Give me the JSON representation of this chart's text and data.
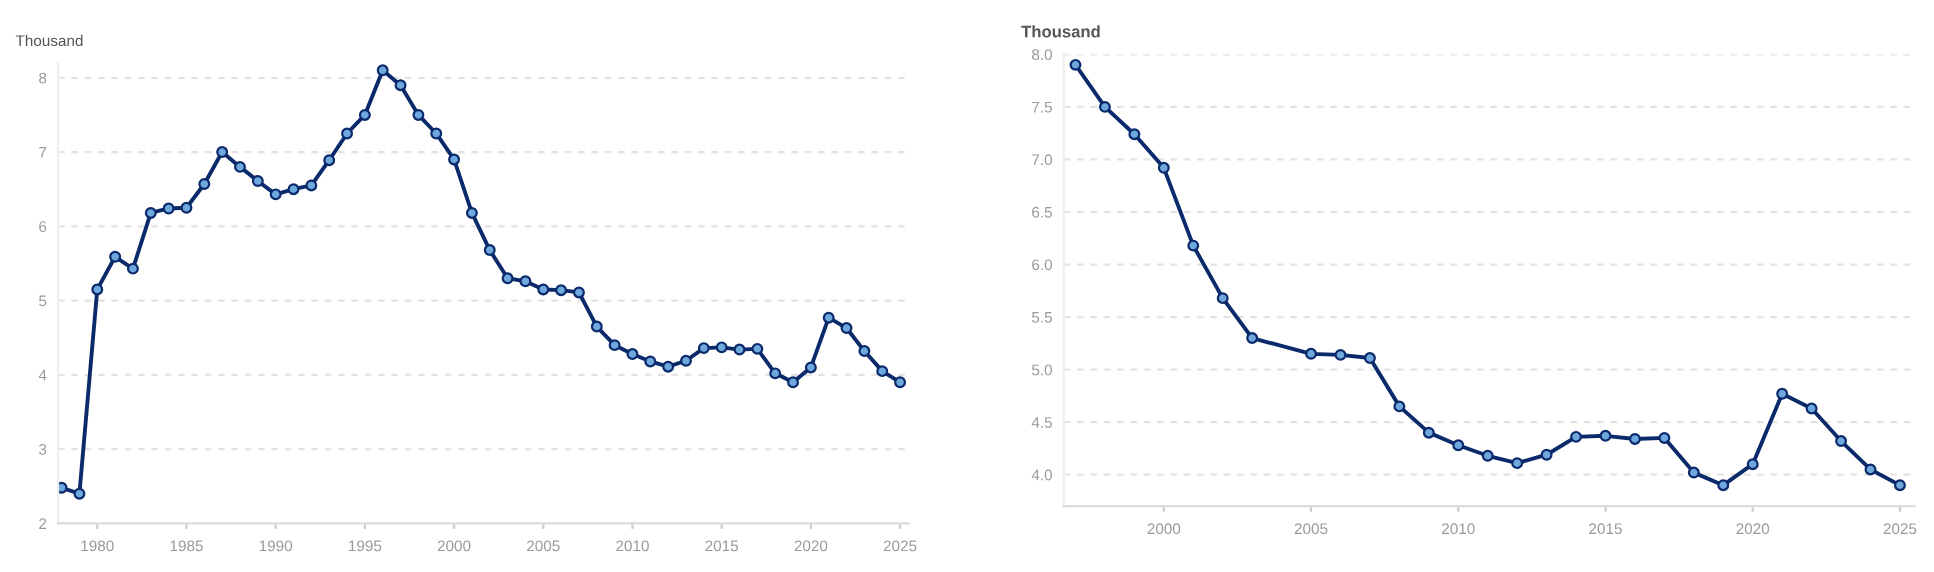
{
  "chart_data": [
    {
      "type": "line",
      "ylabel": "Thousand",
      "x": [
        1978,
        1979,
        1980,
        1981,
        1982,
        1983,
        1984,
        1985,
        1986,
        1987,
        1988,
        1989,
        1990,
        1991,
        1992,
        1993,
        1994,
        1995,
        1996,
        1997,
        1998,
        1999,
        2000,
        2001,
        2002,
        2003,
        2004,
        2005,
        2006,
        2007,
        2008,
        2009,
        2010,
        2011,
        2012,
        2013,
        2014,
        2015,
        2016,
        2017,
        2018,
        2019,
        2020,
        2021,
        2022,
        2023,
        2024,
        2025
      ],
      "series": [
        {
          "color": "#0b2a6b",
          "values": [
            2.48,
            2.4,
            5.15,
            5.59,
            5.43,
            6.18,
            6.24,
            6.25,
            6.57,
            7.0,
            6.8,
            6.61,
            6.43,
            6.5,
            6.55,
            6.89,
            7.25,
            7.5,
            8.1,
            7.9,
            7.5,
            7.25,
            6.9,
            6.18,
            5.68,
            5.3,
            5.26,
            5.15,
            5.14,
            5.11,
            4.65,
            4.4,
            4.28,
            4.18,
            4.11,
            4.19,
            4.36,
            4.37,
            4.34,
            4.35,
            4.02,
            3.9,
            4.1,
            4.77,
            4.63,
            4.32,
            4.05,
            3.9
          ]
        }
      ],
      "xlim": [
        1977.8,
        2025.5
      ],
      "xticks": [
        1980,
        1985,
        1990,
        1995,
        2000,
        2005,
        2010,
        2015,
        2020,
        2025
      ],
      "ylim": [
        2,
        8.2
      ],
      "yticks": [
        2,
        3,
        4,
        5,
        6,
        7,
        8
      ],
      "grid": "y",
      "marker": "circle",
      "line_style": "solid",
      "legend": false
    },
    {
      "type": "line",
      "ylabel": "Thousand",
      "x": [
        1997,
        1998,
        1999,
        2000,
        2001,
        2002,
        2003,
        2005,
        2006,
        2007,
        2008,
        2009,
        2010,
        2011,
        2012,
        2013,
        2014,
        2015,
        2016,
        2017,
        2018,
        2019,
        2020,
        2021,
        2022,
        2023,
        2024,
        2025
      ],
      "series": [
        {
          "color": "#0b2a6b",
          "values": [
            7.9,
            7.5,
            7.24,
            6.92,
            6.18,
            5.68,
            5.3,
            5.15,
            5.14,
            5.11,
            4.65,
            4.4,
            4.28,
            4.18,
            4.11,
            4.19,
            4.36,
            4.37,
            4.34,
            4.35,
            4.02,
            3.9,
            4.1,
            4.77,
            4.63,
            4.32,
            4.05,
            3.9
          ]
        }
      ],
      "xlim": [
        1996.6,
        2025.5
      ],
      "xticks": [
        2000,
        2005,
        2010,
        2015,
        2020,
        2025
      ],
      "ylim": [
        3.7,
        8.0
      ],
      "yticks": [
        {
          "value": 4,
          "label": "4.0"
        },
        {
          "value": 4.5,
          "label": "4.5"
        },
        {
          "value": 5,
          "label": "5.0"
        },
        {
          "value": 5.5,
          "label": "5.5"
        },
        {
          "value": 6,
          "label": "6.0"
        },
        {
          "value": 6.5,
          "label": "6.5"
        },
        {
          "value": 7,
          "label": "7.0"
        },
        {
          "value": 7.5,
          "label": "7.5"
        },
        {
          "value": 8,
          "label": "8.0"
        }
      ],
      "grid": "y",
      "marker": "circle",
      "line_style": "solid",
      "legend": false
    }
  ]
}
